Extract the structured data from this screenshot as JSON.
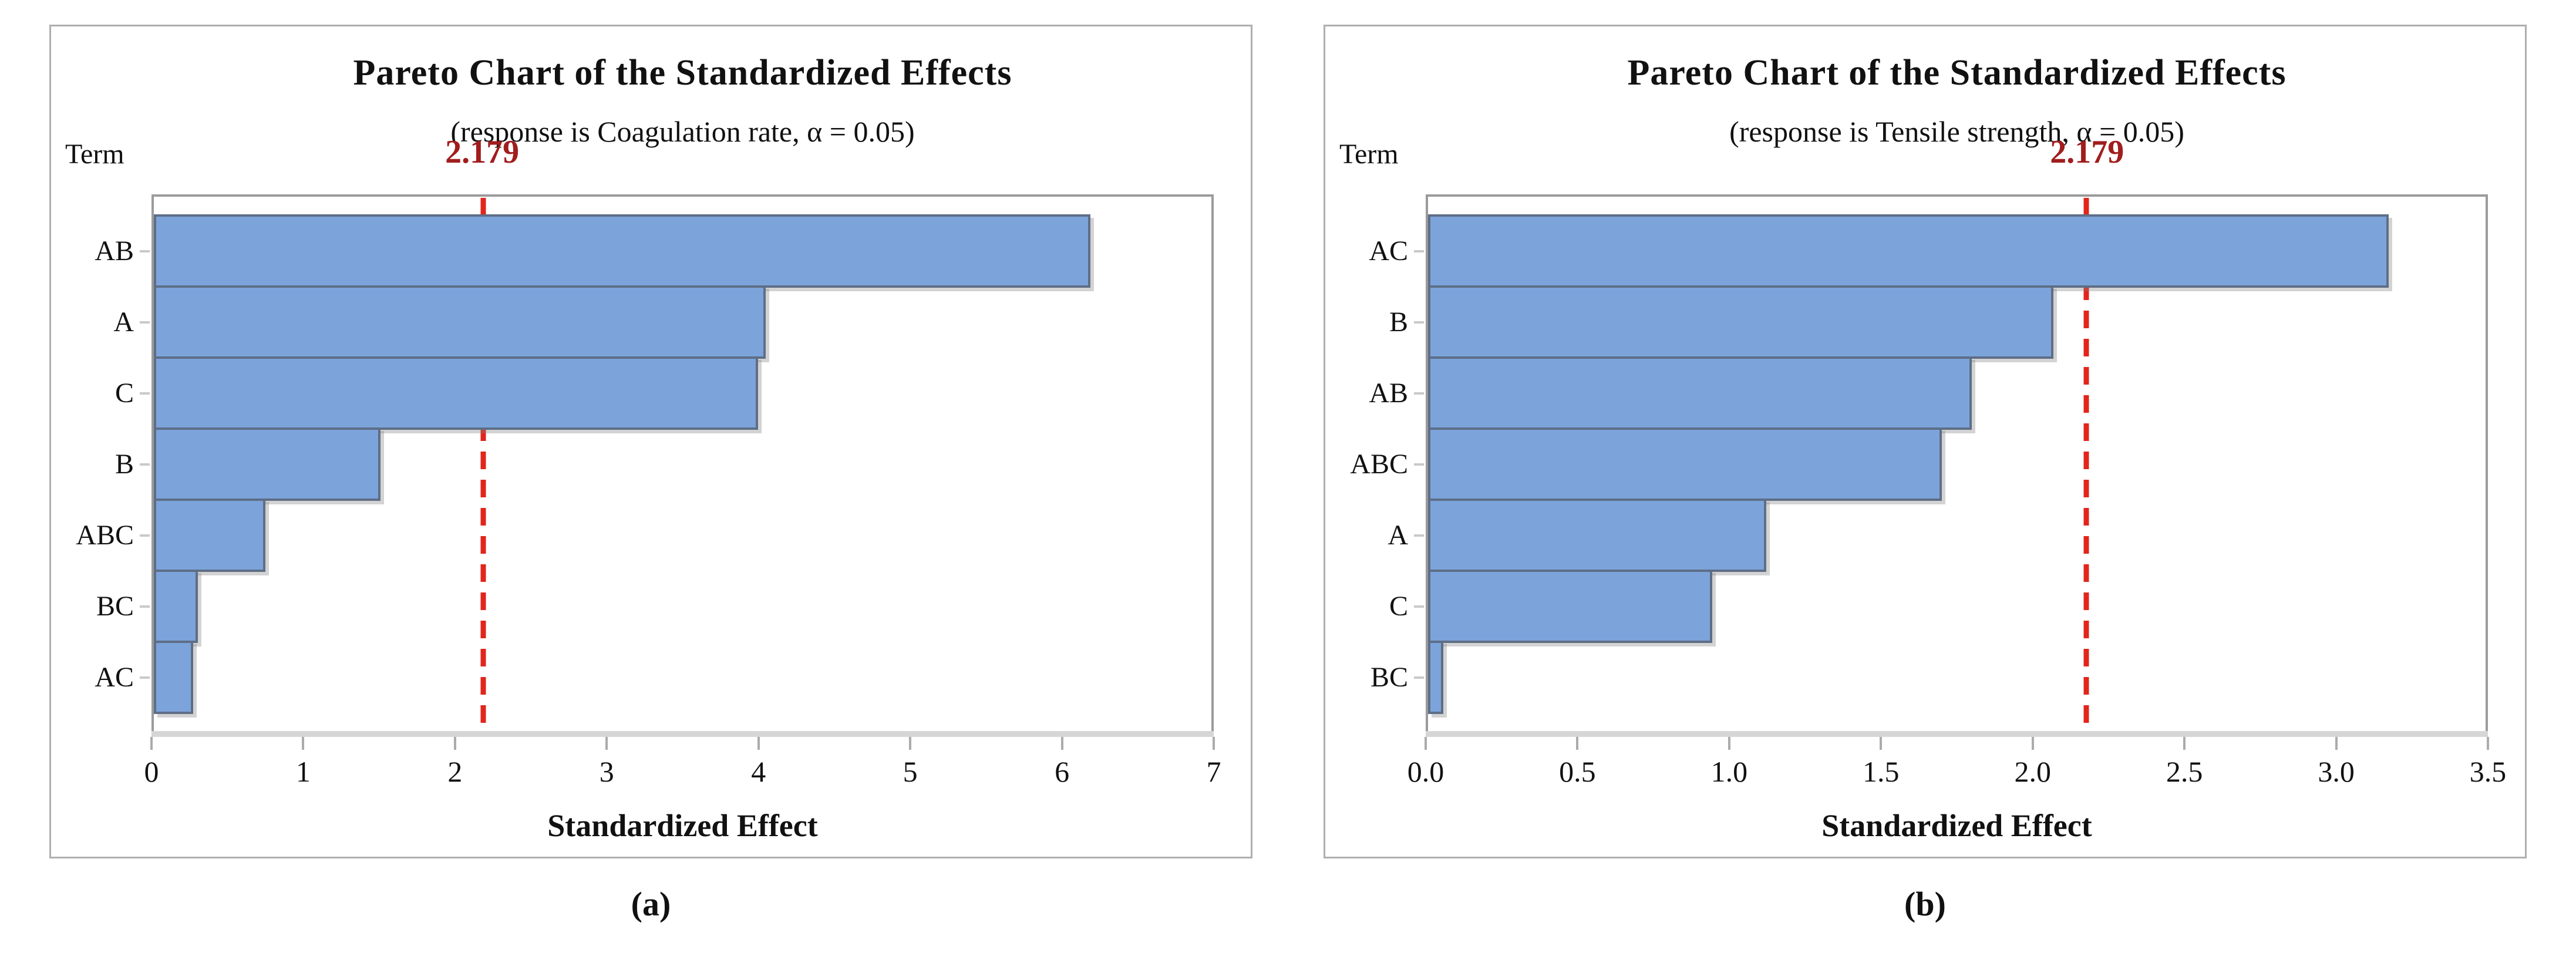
{
  "colors": {
    "bar_fill": "#7CA4DB",
    "bar_border": "#5E6E86",
    "ref_line": "#E2251B",
    "ref_label": "#A11D1D",
    "plot_border": "#9B9B9B",
    "axis_band": "#D6D6D6",
    "panel_border": "#AEAEAE"
  },
  "chart_data": [
    {
      "type": "bar",
      "orientation": "horizontal",
      "title": "Pareto Chart of the Standardized Effects",
      "subtitle": "(response is Coagulation rate, α = 0.05)",
      "y_axis_label": "Term",
      "xlabel": "Standardized Effect",
      "categories": [
        "AB",
        "A",
        "C",
        "B",
        "ABC",
        "BC",
        "AC"
      ],
      "values": [
        6.2,
        4.05,
        4.0,
        1.5,
        0.74,
        0.29,
        0.26
      ],
      "reference_line": 2.179,
      "reference_label": "2.179",
      "xlim": [
        0,
        7
      ],
      "x_ticks": [
        "0",
        "1",
        "2",
        "3",
        "4",
        "5",
        "6",
        "7"
      ],
      "grid": "off",
      "legend": "none",
      "caption": "(a)"
    },
    {
      "type": "bar",
      "orientation": "horizontal",
      "title": "Pareto Chart of the Standardized Effects",
      "subtitle": "(response is Tensile strength, α = 0.05)",
      "y_axis_label": "Term",
      "xlabel": "Standardized Effect",
      "categories": [
        "AC",
        "B",
        "AB",
        "ABC",
        "A",
        "C",
        "BC"
      ],
      "values": [
        3.18,
        2.07,
        1.8,
        1.7,
        1.12,
        0.94,
        0.05
      ],
      "reference_line": 2.179,
      "reference_label": "2.179",
      "xlim": [
        0,
        3.5
      ],
      "x_ticks": [
        "0.0",
        "0.5",
        "1.0",
        "1.5",
        "2.0",
        "2.5",
        "3.0",
        "3.5"
      ],
      "grid": "off",
      "legend": "none",
      "caption": "(b)"
    }
  ]
}
